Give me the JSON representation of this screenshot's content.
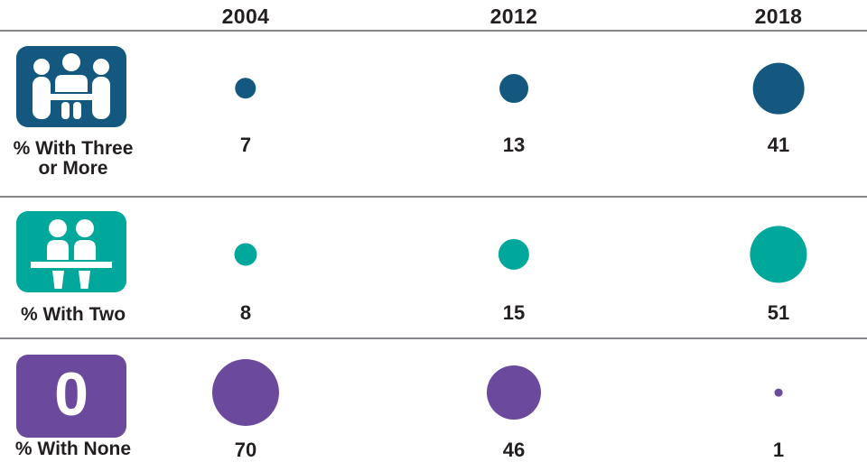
{
  "page": {
    "background": "#FFFFFF",
    "text_color": "#231F20",
    "divider_color": "#85868A"
  },
  "chart_data": {
    "type": "bubble",
    "title": "",
    "columns": [
      "2004",
      "2012",
      "2018"
    ],
    "rows": [
      {
        "label": "% With Three or More",
        "label_lines": [
          "% With Three",
          "or More"
        ],
        "icon": "three-people-meeting-icon",
        "color": "#14587F",
        "values": [
          7,
          13,
          41
        ]
      },
      {
        "label": "% With Two",
        "label_lines": [
          "% With Two"
        ],
        "icon": "two-people-desk-icon",
        "color": "#00A79B",
        "values": [
          8,
          15,
          51
        ]
      },
      {
        "label": "% With None",
        "label_lines": [
          "% With None"
        ],
        "icon": "zero-badge-icon",
        "icon_text": "0",
        "color": "#6B4A9E",
        "values": [
          70,
          46,
          1
        ]
      }
    ],
    "legend_position": "none",
    "grid": "horizontal dividers between rows",
    "size_encoding": "circle area proportional to value",
    "size_scale": 8.85
  }
}
